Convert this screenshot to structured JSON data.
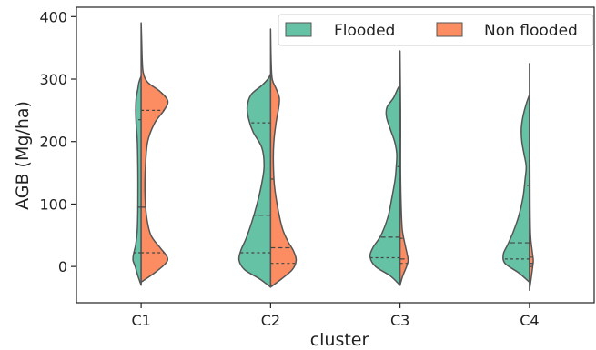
{
  "chart_data": {
    "type": "violin",
    "split": true,
    "xlabel": "cluster",
    "ylabel": "AGB (Mg/ha)",
    "categories": [
      "C1",
      "C2",
      "C3",
      "C4"
    ],
    "ylim": [
      -58,
      415
    ],
    "yticks": [
      0,
      100,
      200,
      300,
      400
    ],
    "legend_position": "top-right",
    "series": [
      {
        "name": "Flooded",
        "color": "#66c2a5",
        "side": "left",
        "violins": [
          {
            "range": [
              -30,
              305
            ],
            "quartiles": [
              22,
              95,
              235
            ],
            "profile": [
              [
                -30,
                0.0
              ],
              [
                -15,
                0.06
              ],
              [
                0,
                0.11
              ],
              [
                10,
                0.15
              ],
              [
                20,
                0.14
              ],
              [
                35,
                0.1
              ],
              [
                60,
                0.07
              ],
              [
                100,
                0.06
              ],
              [
                150,
                0.06
              ],
              [
                200,
                0.07
              ],
              [
                225,
                0.09
              ],
              [
                250,
                0.1
              ],
              [
                270,
                0.09
              ],
              [
                285,
                0.06
              ],
              [
                295,
                0.04
              ],
              [
                305,
                0.0
              ]
            ]
          },
          {
            "range": [
              -33,
              308
            ],
            "quartiles": [
              22,
              82,
              230
            ],
            "profile": [
              [
                -33,
                0.0
              ],
              [
                -20,
                0.2
              ],
              [
                -5,
                0.48
              ],
              [
                10,
                0.58
              ],
              [
                25,
                0.55
              ],
              [
                45,
                0.45
              ],
              [
                70,
                0.35
              ],
              [
                100,
                0.25
              ],
              [
                130,
                0.17
              ],
              [
                160,
                0.12
              ],
              [
                190,
                0.16
              ],
              [
                215,
                0.32
              ],
              [
                235,
                0.4
              ],
              [
                255,
                0.43
              ],
              [
                275,
                0.36
              ],
              [
                290,
                0.16
              ],
              [
                300,
                0.05
              ],
              [
                308,
                0.0
              ]
            ]
          },
          {
            "range": [
              -30,
              290
            ],
            "quartiles": [
              14,
              47,
              160
            ],
            "profile": [
              [
                -30,
                0.0
              ],
              [
                -15,
                0.18
              ],
              [
                0,
                0.45
              ],
              [
                15,
                0.55
              ],
              [
                30,
                0.5
              ],
              [
                50,
                0.35
              ],
              [
                80,
                0.22
              ],
              [
                110,
                0.15
              ],
              [
                140,
                0.09
              ],
              [
                160,
                0.07
              ],
              [
                180,
                0.06
              ],
              [
                200,
                0.1
              ],
              [
                220,
                0.18
              ],
              [
                240,
                0.25
              ],
              [
                255,
                0.24
              ],
              [
                270,
                0.12
              ],
              [
                285,
                0.04
              ],
              [
                290,
                0.0
              ]
            ]
          },
          {
            "range": [
              -25,
              275
            ],
            "quartiles": [
              12,
              38,
              130
            ],
            "profile": [
              [
                -25,
                0.0
              ],
              [
                -10,
                0.2
              ],
              [
                5,
                0.45
              ],
              [
                20,
                0.48
              ],
              [
                35,
                0.4
              ],
              [
                55,
                0.3
              ],
              [
                80,
                0.2
              ],
              [
                110,
                0.12
              ],
              [
                140,
                0.08
              ],
              [
                160,
                0.06
              ],
              [
                180,
                0.1
              ],
              [
                200,
                0.14
              ],
              [
                220,
                0.15
              ],
              [
                240,
                0.12
              ],
              [
                260,
                0.06
              ],
              [
                275,
                0.0
              ]
            ]
          }
        ]
      },
      {
        "name": "Non flooded",
        "color": "#fc8d62",
        "side": "right",
        "violins": [
          {
            "range": [
              -25,
              390
            ],
            "quartiles": [
              22,
              95,
              250
            ],
            "profile": [
              [
                -25,
                0.0
              ],
              [
                -10,
                0.25
              ],
              [
                5,
                0.45
              ],
              [
                15,
                0.48
              ],
              [
                30,
                0.35
              ],
              [
                50,
                0.18
              ],
              [
                80,
                0.1
              ],
              [
                120,
                0.07
              ],
              [
                160,
                0.08
              ],
              [
                200,
                0.12
              ],
              [
                230,
                0.25
              ],
              [
                250,
                0.42
              ],
              [
                265,
                0.49
              ],
              [
                280,
                0.35
              ],
              [
                295,
                0.12
              ],
              [
                310,
                0.04
              ],
              [
                330,
                0.02
              ],
              [
                360,
                0.01
              ],
              [
                390,
                0.0
              ]
            ]
          },
          {
            "range": [
              -33,
              380
            ],
            "quartiles": [
              5,
              30,
              140
            ],
            "profile": [
              [
                -33,
                0.0
              ],
              [
                -20,
                0.2
              ],
              [
                -5,
                0.4
              ],
              [
                10,
                0.47
              ],
              [
                25,
                0.42
              ],
              [
                40,
                0.32
              ],
              [
                60,
                0.22
              ],
              [
                90,
                0.14
              ],
              [
                130,
                0.07
              ],
              [
                170,
                0.05
              ],
              [
                200,
                0.06
              ],
              [
                230,
                0.1
              ],
              [
                255,
                0.15
              ],
              [
                270,
                0.16
              ],
              [
                285,
                0.1
              ],
              [
                300,
                0.03
              ],
              [
                330,
                0.01
              ],
              [
                380,
                0.0
              ]
            ]
          },
          {
            "range": [
              -30,
              345
            ],
            "quartiles": [
              5,
              12,
              45
            ],
            "profile": [
              [
                -30,
                0.0
              ],
              [
                -15,
                0.05
              ],
              [
                0,
                0.12
              ],
              [
                10,
                0.15
              ],
              [
                20,
                0.13
              ],
              [
                40,
                0.08
              ],
              [
                60,
                0.04
              ],
              [
                100,
                0.02
              ],
              [
                150,
                0.01
              ],
              [
                200,
                0.01
              ],
              [
                250,
                0.01
              ],
              [
                345,
                0.0
              ]
            ]
          },
          {
            "range": [
              -38,
              325
            ],
            "quartiles": [
              0,
              5,
              15
            ],
            "profile": [
              [
                -38,
                0.0
              ],
              [
                -20,
                0.03
              ],
              [
                0,
                0.06
              ],
              [
                10,
                0.07
              ],
              [
                25,
                0.05
              ],
              [
                50,
                0.02
              ],
              [
                100,
                0.01
              ],
              [
                200,
                0.005
              ],
              [
                325,
                0.0
              ]
            ]
          }
        ]
      }
    ]
  }
}
